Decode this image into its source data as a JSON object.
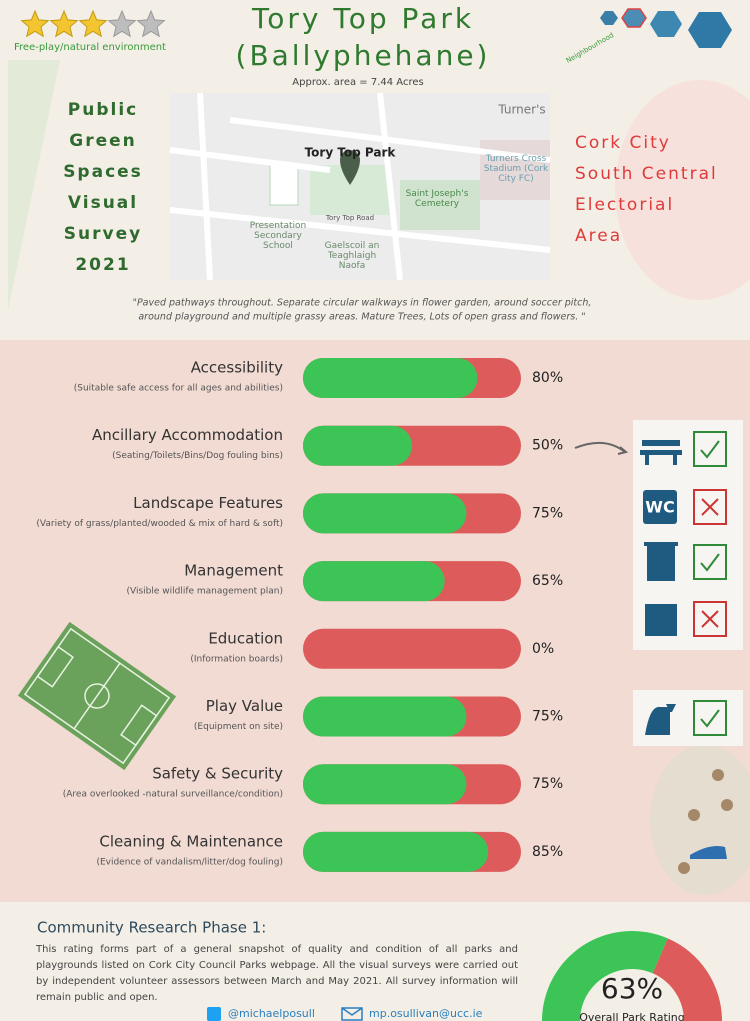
{
  "header": {
    "title_line1": "Tory Top Park",
    "title_line2": "(Ballyphehane)",
    "area": "Approx. area = 7.44 Acres",
    "stars": 3,
    "stars_max": 5,
    "environment": "Free-play/natural environment",
    "neighbourhood": "Neighbourhood"
  },
  "survey_title": [
    "Public",
    "Green",
    "Spaces",
    "Visual",
    "Survey",
    "2021"
  ],
  "area_title": [
    "Cork City",
    "South Central",
    "Electorial",
    "Area"
  ],
  "map_labels": [
    "Tory Top Park",
    "Saint Joseph's Cemetery",
    "Presentation Secondary School",
    "Gaelscoil an Teaghlaigh Naofa",
    "Turners Cross Stadium (Cork City FC)",
    "Tory Top Road",
    "Turner's"
  ],
  "quote": [
    "\"Paved pathways throughout. Separate circular walkways in flower garden, around soccer pitch,",
    "around playground and multiple grassy areas. Mature Trees, Lots of open grass and flowers. \""
  ],
  "ratings": [
    {
      "name": "Accessibility",
      "description": "(Suitable safe access for all ages and abilities)",
      "value": 80,
      "label": "80%"
    },
    {
      "name": "Ancillary Accommodation",
      "description": "(Seating/Toilets/Bins/Dog fouling bins)",
      "value": 50,
      "label": "50%"
    },
    {
      "name": "Landscape Features",
      "description": "(Variety of grass/planted/wooded & mix of hard & soft)",
      "value": 75,
      "label": "75%"
    },
    {
      "name": "Management",
      "description": "(Visible wildlife management plan)",
      "value": 65,
      "label": "65%"
    },
    {
      "name": "Education",
      "description": "(Information boards)",
      "value": 0,
      "label": "0%"
    },
    {
      "name": "Play Value",
      "description": "(Equipment on site)",
      "value": 75,
      "label": "75%"
    },
    {
      "name": "Safety & Security",
      "description": "(Area overlooked -natural surveillance/condition)",
      "value": 75,
      "label": "75%"
    },
    {
      "name": "Cleaning & Maintenance",
      "description": "(Evidence of vandalism/litter/dog fouling)",
      "value": 85,
      "label": "85%"
    }
  ],
  "rating_max": 100,
  "footer": {
    "heading": "Community Research Phase 1:",
    "text": "This rating forms part of a general snapshot of quality and condition of all parks and playgrounds listed on Cork City Council Parks webpage. All the visual surveys were carried out by independent volunteer assessors between March and May 2021. All survey information will remain public and open.",
    "twitter": "@michaelposull",
    "email": "mp.osullivan@ucc.ie",
    "overall": 63,
    "overall_label": "63%",
    "overall_caption": "Overall Park Rating"
  }
}
